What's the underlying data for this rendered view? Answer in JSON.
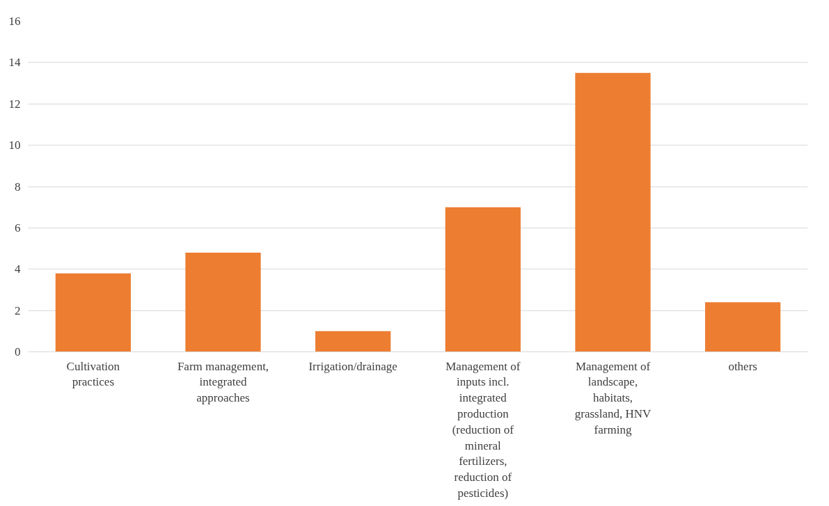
{
  "chart_data": {
    "type": "bar",
    "categories": [
      "Cultivation practices",
      "Farm management, integrated approaches",
      "Irrigation/drainage",
      "Management of inputs incl. integrated production (reduction of mineral fertilizers, reduction of pesticides)",
      "Management of landscape, habitats, grassland, HNV farming",
      "others"
    ],
    "values": [
      3.8,
      4.8,
      1.0,
      7.0,
      13.5,
      2.4
    ],
    "color": "#ed7d31",
    "ylim": [
      0,
      16
    ],
    "yticks": [
      0,
      2,
      4,
      6,
      8,
      10,
      12,
      14,
      16
    ],
    "grid": "y"
  }
}
